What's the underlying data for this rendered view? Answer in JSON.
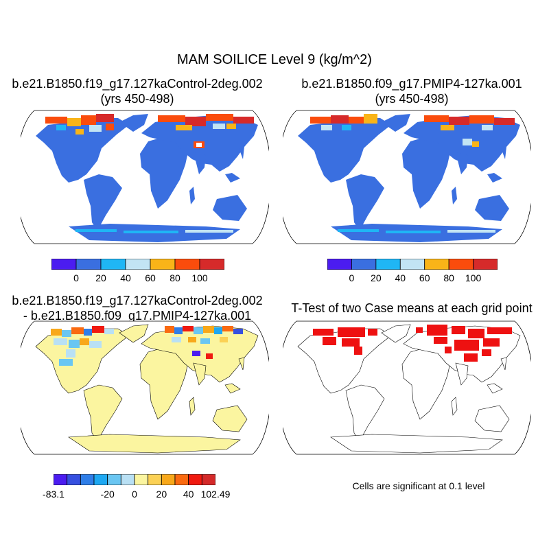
{
  "figure": {
    "main_title": "MAM SOILICE Level 9 (kg/m^2)",
    "panel1": {
      "title_line1": "b.e21.B1850.f19_g17.127kaControl-2deg.002",
      "title_line2": "(yrs 450-498)"
    },
    "panel2": {
      "title_line1": "b.e21.B1850.f09_g17.PMIP4-127ka.001",
      "title_line2": "(yrs 450-498)"
    },
    "panel3": {
      "title_line1": "b.e21.B1850.f19_g17.127kaControl-2deg.002",
      "title_line2": "- b.e21.B1850.f09_g17.PMIP4-127ka.001"
    },
    "panel4": {
      "title": "T-Test of two Case means at each grid point",
      "note": "Cells are significant at 0.1 level"
    }
  },
  "colorbars": {
    "abs": {
      "colors": [
        "#4b1cf0",
        "#3a6fe0",
        "#1fb6f5",
        "#c2e4f4",
        "#f9b418",
        "#fa4c0c",
        "#d62a2a"
      ],
      "labels": [
        "0",
        "20",
        "40",
        "60",
        "80",
        "100"
      ]
    },
    "diff": {
      "colors": [
        "#4b1cf0",
        "#3650e0",
        "#2f7ee8",
        "#1ea8f2",
        "#6ac6f2",
        "#b9e0f4",
        "#fbf5a0",
        "#fbd155",
        "#f8a81a",
        "#fa6a10",
        "#f01a10",
        "#d42a2a"
      ],
      "labels": [
        "-83.1",
        "-20",
        "0",
        "20",
        "40",
        "102.49"
      ]
    }
  },
  "chart_data": [
    {
      "type": "heatmap",
      "title": "b.e21.B1850.f19_g17.127kaControl-2deg.002 (yrs 450-498)",
      "variable": "MAM SOILICE Level 9",
      "units": "kg/m^2",
      "colorbar_labels": [
        0,
        20,
        40,
        60,
        80,
        100
      ],
      "dominant_value_land": 10,
      "high_value_regions": [
        "Alaska",
        "northern Canada",
        "Canadian Arctic Archipelago",
        "northern Siberia",
        "Tibetan Plateau",
        "Antarctic coast"
      ]
    },
    {
      "type": "heatmap",
      "title": "b.e21.B1850.f09_g17.PMIP4-127ka.001 (yrs 450-498)",
      "variable": "MAM SOILICE Level 9",
      "units": "kg/m^2",
      "colorbar_labels": [
        0,
        20,
        40,
        60,
        80,
        100
      ],
      "dominant_value_land": 10,
      "high_value_regions": [
        "Alaska",
        "northern Canada",
        "northern Siberia",
        "Mongolia",
        "Antarctic coast"
      ]
    },
    {
      "type": "heatmap",
      "title": "Difference (Control-2deg minus PMIP4-127ka)",
      "colorbar_labels": [
        -83.1,
        -20,
        0,
        20,
        40,
        102.49
      ],
      "min": -83.1,
      "max": 102.49,
      "dominant_value_land": 0
    },
    {
      "type": "heatmap",
      "title": "T-Test of two Case means at each grid point",
      "significance_level": 0.1,
      "significant_regions": [
        "Alaska",
        "northern Canada",
        "northern Siberia",
        "central Asia"
      ]
    }
  ]
}
